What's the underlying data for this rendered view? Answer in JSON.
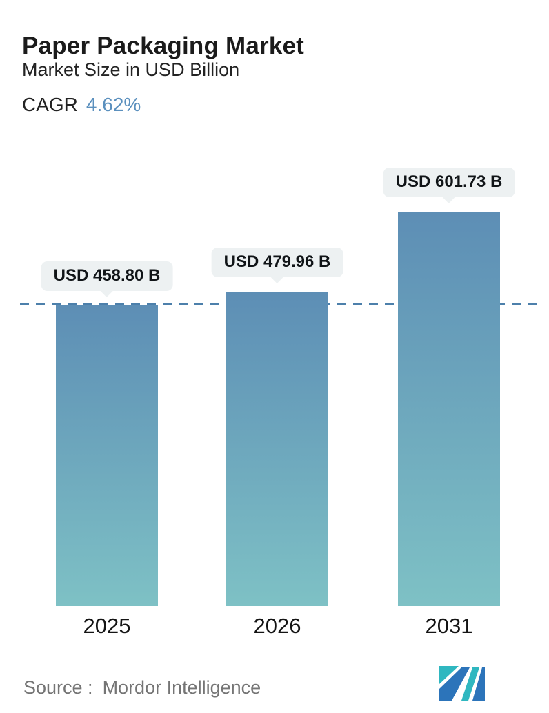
{
  "header": {
    "title": "Paper Packaging Market",
    "subtitle": "Market Size in USD Billion",
    "cagr_label": "CAGR",
    "cagr_value": "4.62%"
  },
  "chart_data": {
    "type": "bar",
    "title": "Paper Packaging Market",
    "subtitle": "Market Size in USD Billion",
    "cagr": "4.62%",
    "unit": "USD Billion",
    "categories": [
      "2025",
      "2026",
      "2031"
    ],
    "values": [
      458.8,
      479.96,
      601.73
    ],
    "bar_labels": [
      "USD 458.80 B",
      "USD 479.96 B",
      "USD 601.73 B"
    ],
    "ylim": [
      0,
      620
    ],
    "grid": "off",
    "legend": "none",
    "reference_line": {
      "style": "dashed",
      "value": 458.8
    },
    "colors": {
      "bar_gradient_top": "#5d8eb5",
      "bar_gradient_bottom": "#7ec1c5",
      "dashed_line": "#4d80ab",
      "label_bubble_bg": "#edf1f2",
      "label_text": "#101417",
      "cagr_accent": "#5b90be"
    }
  },
  "footer": {
    "source_label": "Source :",
    "source_value": "Mordor Intelligence"
  },
  "logo": {
    "name": "mordor-intelligence-logo",
    "teal": "#2fb7c0",
    "blue": "#2c74ba"
  }
}
